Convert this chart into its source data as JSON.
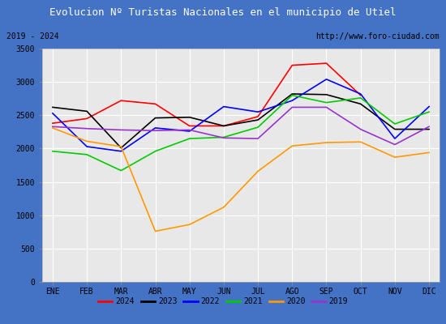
{
  "title": "Evolucion Nº Turistas Nacionales en el municipio de Utiel",
  "title_bg": "#4472c4",
  "subtitle_left": "2019 - 2024",
  "subtitle_right": "http://www.foro-ciudad.com",
  "subtitle_bg": "#e8e8e8",
  "border_color": "#4472c4",
  "months": [
    "ENE",
    "FEB",
    "MAR",
    "ABR",
    "MAY",
    "JUN",
    "JUL",
    "AGO",
    "SEP",
    "OCT",
    "NOV",
    "DIC"
  ],
  "ylim": [
    0,
    3500
  ],
  "yticks": [
    0,
    500,
    1000,
    1500,
    2000,
    2500,
    3000,
    3500
  ],
  "series": {
    "2024": {
      "color": "#ff0000",
      "data": [
        2380,
        2450,
        2720,
        2670,
        2340,
        2340,
        2480,
        3250,
        3280,
        2800,
        null,
        null
      ]
    },
    "2023": {
      "color": "#000000",
      "data": [
        2620,
        2560,
        2010,
        2460,
        2470,
        2340,
        2430,
        2820,
        2810,
        2670,
        2290,
        2290
      ]
    },
    "2022": {
      "color": "#0000ff",
      "data": [
        2530,
        2030,
        1960,
        2310,
        2260,
        2630,
        2550,
        2720,
        3040,
        2820,
        2150,
        2630
      ]
    },
    "2021": {
      "color": "#00cc00",
      "data": [
        1960,
        1910,
        1670,
        1960,
        2150,
        2170,
        2320,
        2800,
        2690,
        2760,
        2370,
        2550
      ]
    },
    "2020": {
      "color": "#ff9900",
      "data": [
        2310,
        2110,
        2030,
        760,
        860,
        1120,
        1660,
        2040,
        2090,
        2100,
        1870,
        1940
      ]
    },
    "2019": {
      "color": "#9933cc",
      "data": [
        2330,
        2300,
        2280,
        2270,
        2280,
        2160,
        2150,
        2620,
        2620,
        2290,
        2060,
        2330
      ]
    }
  },
  "legend_order": [
    "2024",
    "2023",
    "2022",
    "2021",
    "2020",
    "2019"
  ],
  "plot_bg": "#e8e8e8",
  "grid_color": "#ffffff",
  "title_fontsize": 9,
  "subtitle_fontsize": 7,
  "tick_fontsize": 7,
  "legend_fontsize": 7
}
